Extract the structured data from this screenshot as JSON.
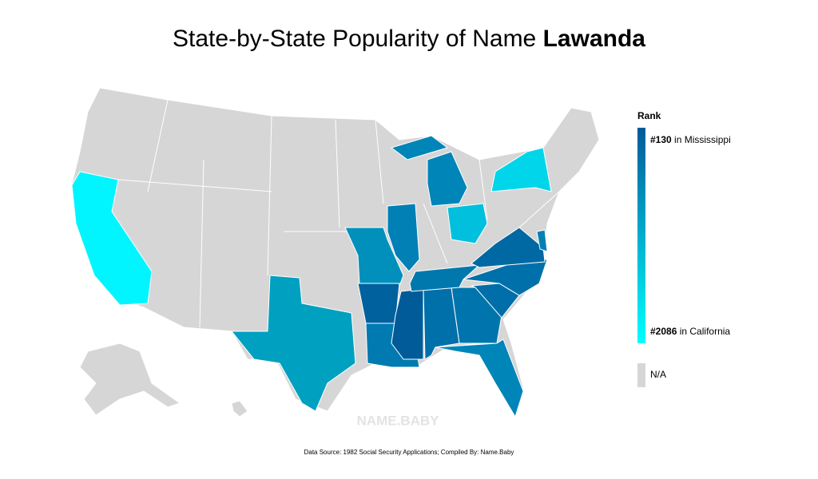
{
  "title": {
    "text": "State-by-State Popularity of Name",
    "name": "Lawanda"
  },
  "legend": {
    "title": "Rank",
    "top": {
      "rank": "#130",
      "place": "in Mississippi"
    },
    "bottom": {
      "rank": "#2086",
      "place": "in California"
    },
    "na": "N/A",
    "colors": {
      "top": "#005b98",
      "bottom": "#00ffff",
      "na": "#d6d6d6"
    }
  },
  "watermark": "NAME.BABY",
  "source": "Data Source: 1982 Social Security Applications; Compiled By: Name.Baby"
}
